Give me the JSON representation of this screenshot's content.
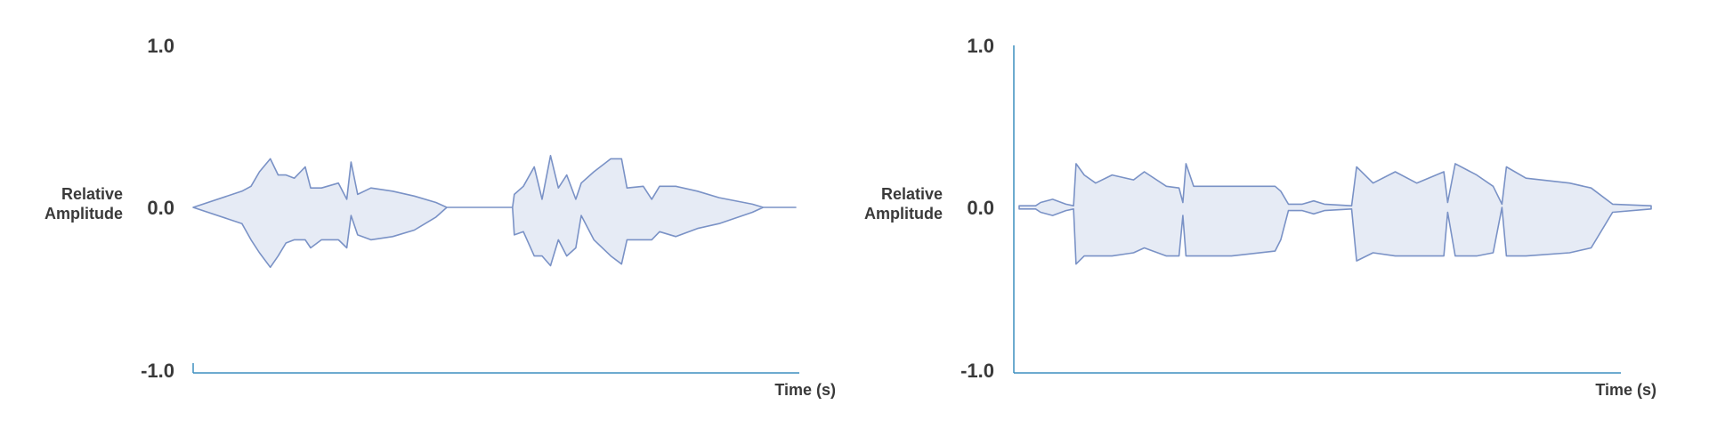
{
  "colors": {
    "axis": "#3d8fbf",
    "wave_stroke": "#7a92c6",
    "wave_fill": "#e6ebf5",
    "text": "#3a3a3a"
  },
  "chart_data": [
    {
      "type": "area",
      "title": "",
      "xlabel": "Time (s)",
      "ylabel_lines": [
        "Relative",
        "Amplitude"
      ],
      "yticks": [
        "1.0",
        "0.0",
        "-1.0"
      ],
      "ylim": [
        -1,
        1
      ],
      "xlim": [
        0,
        100
      ],
      "show_y_axis_line": false,
      "envelope": [
        [
          0,
          0,
          0
        ],
        [
          8.1,
          0.1,
          -0.1
        ],
        [
          9.6,
          0.13,
          -0.2
        ],
        [
          11.0,
          0.22,
          -0.28
        ],
        [
          12.8,
          0.3,
          -0.37
        ],
        [
          14.1,
          0.2,
          -0.3
        ],
        [
          15.4,
          0.2,
          -0.22
        ],
        [
          16.8,
          0.18,
          -0.2
        ],
        [
          18.6,
          0.25,
          -0.2
        ],
        [
          19.5,
          0.12,
          -0.25
        ],
        [
          21.3,
          0.12,
          -0.2
        ],
        [
          24.1,
          0.15,
          -0.2
        ],
        [
          25.5,
          0.05,
          -0.25
        ],
        [
          26.2,
          0.28,
          -0.05
        ],
        [
          27.3,
          0.08,
          -0.17
        ],
        [
          29.5,
          0.12,
          -0.2
        ],
        [
          33.1,
          0.1,
          -0.18
        ],
        [
          36.7,
          0.07,
          -0.14
        ],
        [
          40.3,
          0.03,
          -0.06
        ],
        [
          42.1,
          0,
          0
        ],
        [
          53.0,
          0,
          0
        ],
        [
          53.3,
          0.08,
          -0.17
        ],
        [
          54.8,
          0.13,
          -0.15
        ],
        [
          56.6,
          0.25,
          -0.3
        ],
        [
          57.9,
          0.05,
          -0.3
        ],
        [
          59.3,
          0.32,
          -0.36
        ],
        [
          60.6,
          0.12,
          -0.2
        ],
        [
          62.0,
          0.2,
          -0.3
        ],
        [
          63.5,
          0.05,
          -0.25
        ],
        [
          64.4,
          0.15,
          -0.05
        ],
        [
          66.5,
          0.22,
          -0.2
        ],
        [
          69.3,
          0.3,
          -0.3
        ],
        [
          71.1,
          0.3,
          -0.35
        ],
        [
          72.0,
          0.12,
          -0.2
        ],
        [
          74.7,
          0.13,
          -0.2
        ],
        [
          76.1,
          0.05,
          -0.2
        ],
        [
          77.4,
          0.13,
          -0.15
        ],
        [
          80.1,
          0.13,
          -0.18
        ],
        [
          83.7,
          0.1,
          -0.13
        ],
        [
          87.3,
          0.06,
          -0.1
        ],
        [
          92.8,
          0.02,
          -0.03
        ],
        [
          94.6,
          0,
          0
        ],
        [
          100,
          0,
          0
        ]
      ]
    },
    {
      "type": "area",
      "title": "",
      "xlabel": "Time (s)",
      "ylabel_lines": [
        "Relative",
        "Amplitude"
      ],
      "yticks": [
        "1.0",
        "0.0",
        "-1.0"
      ],
      "ylim": [
        -1,
        1
      ],
      "xlim": [
        0,
        100
      ],
      "show_y_axis_line": true,
      "envelope": [
        [
          0,
          0.01,
          -0.01
        ],
        [
          2.6,
          0.01,
          -0.01
        ],
        [
          3.4,
          0.03,
          -0.03
        ],
        [
          5.3,
          0.05,
          -0.05
        ],
        [
          7.4,
          0.02,
          -0.02
        ],
        [
          8.6,
          0.01,
          -0.01
        ],
        [
          9.0,
          0.27,
          -0.35
        ],
        [
          10.3,
          0.2,
          -0.3
        ],
        [
          12.1,
          0.15,
          -0.3
        ],
        [
          14.7,
          0.2,
          -0.3
        ],
        [
          18.1,
          0.17,
          -0.28
        ],
        [
          19.8,
          0.22,
          -0.25
        ],
        [
          23.3,
          0.13,
          -0.3
        ],
        [
          25.3,
          0.12,
          -0.3
        ],
        [
          25.9,
          0.03,
          -0.05
        ],
        [
          26.4,
          0.27,
          -0.3
        ],
        [
          27.6,
          0.13,
          -0.3
        ],
        [
          33.6,
          0.13,
          -0.3
        ],
        [
          40.5,
          0.13,
          -0.27
        ],
        [
          41.4,
          0.1,
          -0.2
        ],
        [
          42.6,
          0.02,
          -0.02
        ],
        [
          44.8,
          0.02,
          -0.02
        ],
        [
          46.6,
          0.04,
          -0.04
        ],
        [
          48.3,
          0.02,
          -0.02
        ],
        [
          52.6,
          0.01,
          -0.01
        ],
        [
          53.4,
          0.25,
          -0.33
        ],
        [
          56.0,
          0.15,
          -0.28
        ],
        [
          59.5,
          0.22,
          -0.3
        ],
        [
          62.9,
          0.15,
          -0.3
        ],
        [
          67.2,
          0.22,
          -0.3
        ],
        [
          67.8,
          0.03,
          -0.03
        ],
        [
          69.0,
          0.27,
          -0.3
        ],
        [
          72.4,
          0.2,
          -0.3
        ],
        [
          75.0,
          0.13,
          -0.28
        ],
        [
          76.4,
          0.02,
          0
        ],
        [
          77.1,
          0.25,
          -0.3
        ],
        [
          80.2,
          0.18,
          -0.3
        ],
        [
          87.1,
          0.15,
          -0.28
        ],
        [
          90.5,
          0.12,
          -0.25
        ],
        [
          93.9,
          0.02,
          -0.03
        ],
        [
          100,
          0.01,
          -0.01
        ]
      ]
    }
  ]
}
